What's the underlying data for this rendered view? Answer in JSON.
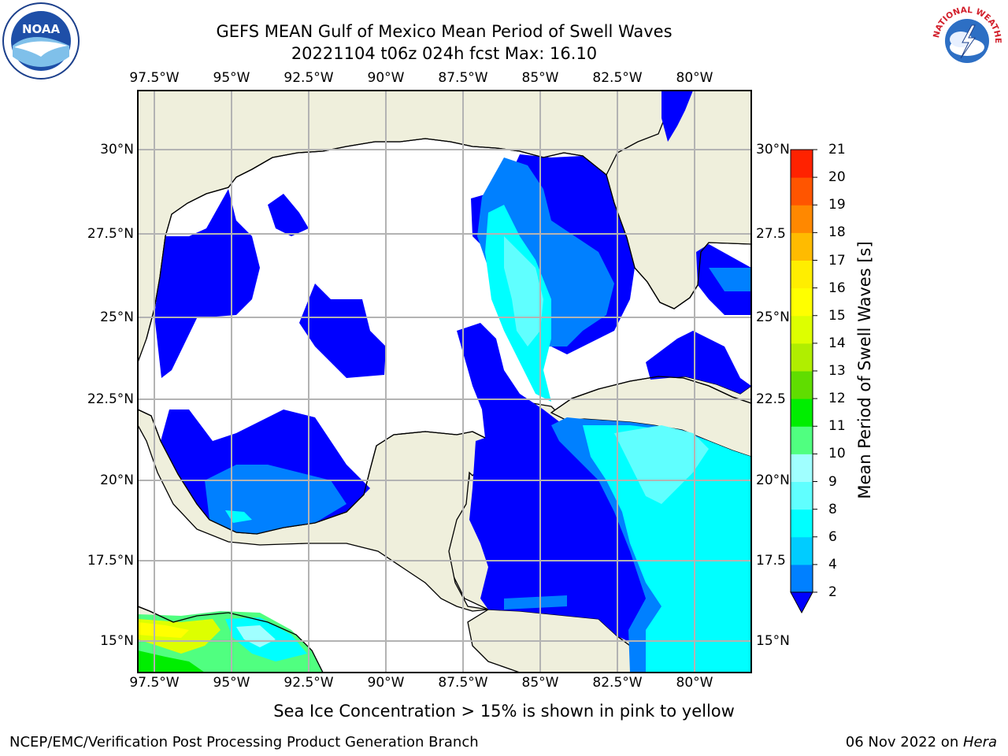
{
  "title": {
    "line1": "GEFS MEAN Gulf of Mexico Mean Period of Swell Waves",
    "line2": "20221104 t06z 024h fcst   Max: 16.10"
  },
  "map": {
    "x_ticks": [
      "97.5°W",
      "95°W",
      "92.5°W",
      "90°W",
      "87.5°W",
      "85°W",
      "82.5°W",
      "80°W"
    ],
    "y_ticks_left": [
      "30°N",
      "27.5°N",
      "25°N",
      "22.5°N",
      "20°N",
      "17.5°N",
      "15°N"
    ],
    "y_ticks_right": [
      "30°N",
      "27.5",
      "25°N",
      "22.5",
      "20°N",
      "17.5",
      "15°N"
    ],
    "extent": {
      "lon": [
        -98.1,
        -78.3
      ],
      "lat": [
        14.0,
        31.9
      ]
    },
    "grid": true,
    "land_color": "#efefdc",
    "ocean_no_data_color": "#ffffff"
  },
  "colorbar": {
    "title": "Mean Period of Swell Waves [s]",
    "levels": [
      2,
      4,
      6,
      8,
      9,
      10,
      11,
      12,
      13,
      14,
      15,
      16,
      17,
      18,
      19,
      20,
      21
    ],
    "colors": [
      "#0080ff",
      "#00ccff",
      "#00ffff",
      "#60ffff",
      "#a0ffff",
      "#50ff80",
      "#00ee00",
      "#60dd00",
      "#b0ee00",
      "#ddff00",
      "#ffff00",
      "#ffee00",
      "#ffbb00",
      "#ff8800",
      "#ff5500",
      "#ff2200",
      "#ff0000"
    ],
    "under_color": "#0000ff",
    "labels": [
      "21",
      "20",
      "19",
      "18",
      "17",
      "16",
      "15",
      "14",
      "13",
      "12",
      "11",
      "10",
      "9",
      "8",
      "6",
      "4",
      "2"
    ]
  },
  "footnote": "Sea Ice Concentration > 15% is shown in pink to yellow",
  "footer": {
    "left": "NCEP/EMC/Verification Post Processing Product Generation Branch",
    "date": "06 Nov 2022 on ",
    "host": "Hera"
  },
  "logos": {
    "left": "NOAA",
    "right": "NATIONAL WEATHER SERVICE"
  }
}
